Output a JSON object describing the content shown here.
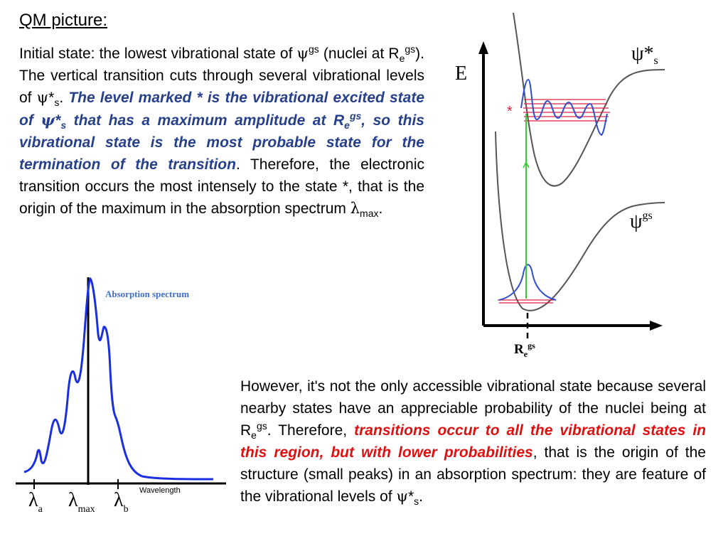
{
  "title": "QM picture:",
  "para1": {
    "s1": "Initial state: the lowest vibrational state of ",
    "psi": "ψ",
    "sup_gs": "gs",
    "s2": " (nuclei at R",
    "sub_e": "e",
    "sup_gs2": "gs",
    "s3": "). The vertical transition cuts through several vibrational levels of ",
    "psi2": "ψ",
    "star": "*",
    "sub_s": "s",
    "s4": ". ",
    "bold1": "The level marked * is the vibrational excited state of ",
    "psi3": "ψ",
    "star2": "*",
    "sub_s2": "s",
    "bold2": " that has a maximum amplitude at R",
    "sub_e2": "e",
    "sup_gs3": "gs",
    "bold3": ", so this vibrational state is the most probable state for the termination of the transition",
    "s5": ". Therefore, the electronic transition occurs the most intensely to the state *, that is the origin of the maximum in the absorption spectrum ",
    "lambda": "λ",
    "sub_max": "max",
    "s6": "."
  },
  "para2": {
    "s1": "However, it's not the only accessible vibrational state because several nearby states have an appreciable probability of the nuclei being at R",
    "sub_e": "e",
    "sup_gs": "gs",
    "s2": ". Therefore, ",
    "red": "transitions occur to all the vibrational states in this region, but with lower probabilities",
    "s3": ", that is the origin of the structure (small peaks) in an absorption spectrum: they are feature of the vibrational levels of ",
    "psi": "ψ",
    "star": "*",
    "sub_s": "s",
    "s4": "."
  },
  "energy_diagram": {
    "axis_label": "E",
    "excited_label_psi": "ψ*",
    "excited_label_sub": "s",
    "ground_label_psi": "ψ",
    "ground_label_sup": "gs",
    "star_marker": "*",
    "re_label": "R",
    "re_sub": "e",
    "re_sup": "gs",
    "colors": {
      "curve": "#555555",
      "wavefunction": "#3050d0",
      "levels": "#e02040",
      "transition": "#33cc33",
      "axis": "#000000"
    }
  },
  "spectrum": {
    "title": "Absorption spectrum",
    "x_axis_label": "Wavelength",
    "lambda_a": "λ",
    "lambda_a_sub": "a",
    "lambda_max": "λ",
    "lambda_max_sub": "max",
    "lambda_b": "λ",
    "lambda_b_sub": "b",
    "colors": {
      "spectrum": "#1a2fe0",
      "title": "#3f6fd0",
      "axis": "#000000"
    }
  }
}
